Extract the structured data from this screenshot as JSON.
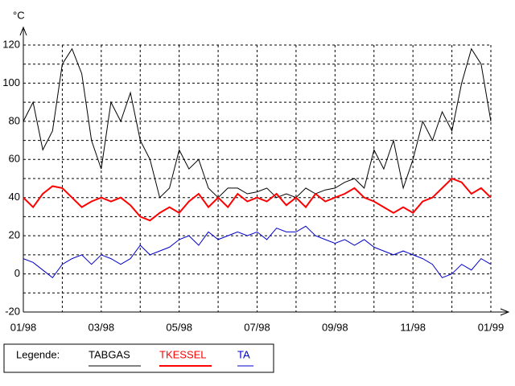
{
  "chart_data": {
    "type": "line",
    "y_label": "°C",
    "legend_title": "Legende:",
    "categories": [
      "01/98",
      null,
      null,
      null,
      null,
      null,
      null,
      null,
      "03/98",
      null,
      null,
      null,
      null,
      null,
      null,
      null,
      "05/98",
      null,
      null,
      null,
      null,
      null,
      null,
      null,
      "07/98",
      null,
      null,
      null,
      null,
      null,
      null,
      null,
      "09/98",
      null,
      null,
      null,
      null,
      null,
      null,
      null,
      "11/98",
      null,
      null,
      null,
      null,
      null,
      null,
      null,
      "01/99"
    ],
    "series": [
      {
        "name": "TABGAS",
        "color": "#000000",
        "values": [
          80,
          90,
          65,
          75,
          110,
          118,
          105,
          70,
          55,
          90,
          80,
          95,
          70,
          60,
          40,
          45,
          65,
          55,
          60,
          45,
          40,
          45,
          45,
          42,
          43,
          45,
          40,
          42,
          40,
          45,
          42,
          44,
          45,
          48,
          50,
          45,
          65,
          55,
          70,
          45,
          60,
          80,
          70,
          85,
          75,
          100,
          118,
          110,
          80
        ]
      },
      {
        "name": "TKESSEL",
        "color": "#ff0000",
        "values": [
          40,
          35,
          42,
          46,
          45,
          40,
          35,
          38,
          40,
          38,
          40,
          36,
          30,
          28,
          32,
          35,
          32,
          38,
          42,
          35,
          40,
          35,
          42,
          38,
          40,
          38,
          42,
          36,
          40,
          35,
          42,
          38,
          40,
          42,
          45,
          40,
          38,
          35,
          32,
          35,
          32,
          38,
          40,
          45,
          50,
          48,
          42,
          45,
          40
        ]
      },
      {
        "name": "TA",
        "color": "#0000cc",
        "values": [
          8,
          6,
          2,
          -2,
          5,
          8,
          10,
          5,
          10,
          8,
          5,
          8,
          15,
          10,
          12,
          14,
          18,
          20,
          15,
          22,
          18,
          20,
          22,
          20,
          22,
          18,
          24,
          22,
          22,
          25,
          20,
          18,
          16,
          18,
          15,
          18,
          14,
          12,
          10,
          12,
          10,
          8,
          5,
          -2,
          0,
          5,
          2,
          8,
          5
        ]
      }
    ],
    "ylim": [
      -20,
      120
    ],
    "yticks": [
      -20,
      0,
      20,
      40,
      60,
      80,
      100,
      120
    ],
    "yminorticks": [
      -10,
      10,
      30,
      50,
      70,
      90,
      110
    ],
    "grid": true
  }
}
